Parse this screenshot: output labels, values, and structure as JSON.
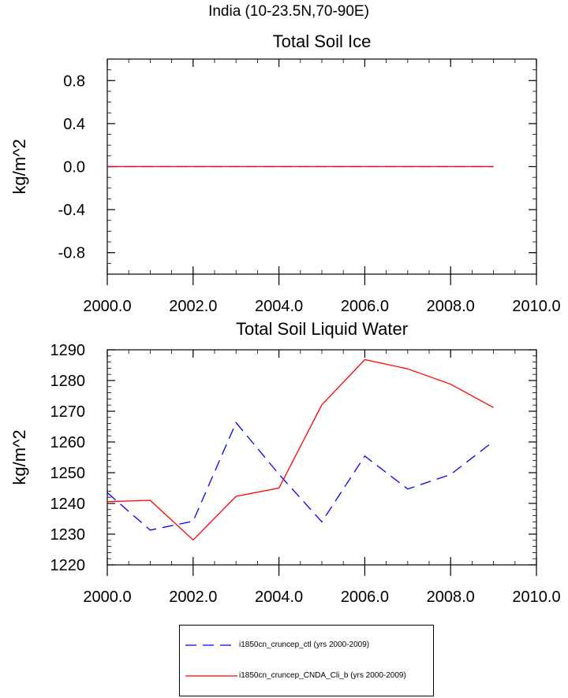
{
  "figure_title": "India (10-23.5N,70-90E)",
  "colors": {
    "ctl": "#0000ff",
    "cnda": "#ff0000"
  },
  "chart_data": [
    {
      "type": "line",
      "title": "Total Soil Ice",
      "xlabel": "",
      "ylabel": "kg/m^2",
      "xlim": [
        2000,
        2010
      ],
      "ylim": [
        -1,
        1
      ],
      "yticks": [
        -0.8,
        -0.4,
        0.0,
        0.4,
        0.8
      ],
      "ytick_labels": [
        "-0.8",
        "-0.4",
        "0.0",
        "0.4",
        "0.8"
      ],
      "xticks": [
        2000,
        2002,
        2004,
        2006,
        2008,
        2010
      ],
      "xtick_labels": [
        "2000.0",
        "2002.0",
        "2004.0",
        "2006.0",
        "2008.0",
        "2010.0"
      ],
      "x": [
        2000,
        2001,
        2002,
        2003,
        2004,
        2005,
        2006,
        2007,
        2008,
        2009
      ],
      "series": [
        {
          "name": "i1850cn_cruncep_ctl (yrs 2000-2009)",
          "style": "dashed",
          "color": "#0000ff",
          "values": [
            0,
            0,
            0,
            0,
            0,
            0,
            0,
            0,
            0,
            0
          ]
        },
        {
          "name": "i1850cn_cruncep_CNDA_Cli_b (yrs 2000-2009)",
          "style": "solid",
          "color": "#ff0000",
          "values": [
            0,
            0,
            0,
            0,
            0,
            0,
            0,
            0,
            0,
            0
          ]
        }
      ]
    },
    {
      "type": "line",
      "title": "Total Soil Liquid Water",
      "xlabel": "",
      "ylabel": "kg/m^2",
      "xlim": [
        2000,
        2010
      ],
      "ylim": [
        1220,
        1290
      ],
      "yticks": [
        1220,
        1230,
        1240,
        1250,
        1260,
        1270,
        1280,
        1290
      ],
      "ytick_labels": [
        "1220",
        "1230",
        "1240",
        "1250",
        "1260",
        "1270",
        "1280",
        "1290"
      ],
      "xticks": [
        2000,
        2002,
        2004,
        2006,
        2008,
        2010
      ],
      "xtick_labels": [
        "2000.0",
        "2002.0",
        "2004.0",
        "2006.0",
        "2008.0",
        "2010.0"
      ],
      "x": [
        2000,
        2001,
        2002,
        2003,
        2004,
        2005,
        2006,
        2007,
        2008,
        2009
      ],
      "series": [
        {
          "name": "i1850cn_cruncep_ctl (yrs 2000-2009)",
          "style": "dashed",
          "color": "#0000ff",
          "values": [
            1243.5,
            1231.3,
            1234.2,
            1266.3,
            1249.5,
            1234.0,
            1255.4,
            1244.7,
            1249.4,
            1260.2
          ]
        },
        {
          "name": "i1850cn_cruncep_CNDA_Cli_b (yrs 2000-2009)",
          "style": "solid",
          "color": "#ff0000",
          "values": [
            1240.6,
            1241.0,
            1228.1,
            1242.3,
            1245.0,
            1272.1,
            1286.8,
            1283.8,
            1278.8,
            1271.2
          ]
        }
      ]
    }
  ],
  "legend": {
    "placement": "bottom-center",
    "entries": [
      {
        "label": "i1850cn_cruncep_ctl (yrs 2000-2009)",
        "style": "dashed",
        "color": "#0000ff"
      },
      {
        "label": "i1850cn_cruncep_CNDA_Cli_b (yrs 2000-2009)",
        "style": "solid",
        "color": "#ff0000"
      }
    ]
  }
}
